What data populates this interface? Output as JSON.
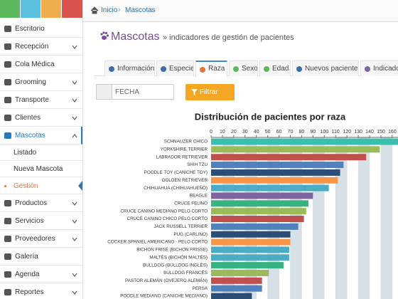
{
  "sidebar": {
    "menu": [
      "Escritorio",
      "Recepción",
      "Cola Médica",
      "Grooming",
      "Transporte",
      "Clientes",
      "Mascotas",
      "Productos",
      "Servicios",
      "Proveedores",
      "Galería",
      "Agenda",
      "Reportes"
    ],
    "submenu": [
      "Listado",
      "Nueva Mascota",
      "Gestión"
    ]
  },
  "breadcrumb": [
    "Inicio",
    "Mascotas"
  ],
  "header": {
    "title": "Mascotas",
    "subtitle": "» indicadores de gestión de pacientes"
  },
  "tabs": [
    "Información",
    "Especie",
    "Raza",
    "Sexo",
    "Edad",
    "Nuevos pacientes",
    "Indicador"
  ],
  "filter": {
    "placeholder": "FECHA",
    "button": "Filtrar"
  },
  "chart_data": {
    "type": "bar",
    "orientation": "horizontal",
    "title": "Distribución de pacientes por raza",
    "categories": [
      "SCHNAUZER CHICO",
      "YORKSHIRE TERRIER",
      "LABRADOR RETRIEVER",
      "SHIH TZU",
      "POODLE TOY (CANICHE TOY)",
      "GOLDEN RETRIEVER",
      "CHIHUAHUA (CHIHUAHUEÑO)",
      "BEAGLE",
      "CRUCE FELINO",
      "CRUCE CANINO MEDIANO PELO CORTO",
      "CRUCE CANINO CHICO PELO CORTO",
      "JACK RUSSELL TERRIER",
      "PUG (CARLINO)",
      "COCKER SPANIEL AMERICANO - PELO CORTO",
      "BICHÓN FRISÉ (BICHON FRISSE)",
      "MALTÉS (BICHÓN MALTÉS)",
      "BULLDOG (BULLDOG INGLÉS)",
      "BULLDOG FRANCÉS",
      "PASTOR ALEMÁN (OVEJERO ALEMÁN)",
      "PERSA",
      "POODLE MEDIANO (CANICHE MEDIANO)"
    ],
    "values": [
      168,
      149,
      137,
      117,
      114,
      112,
      104,
      90,
      86,
      84,
      82,
      77,
      70,
      70,
      69,
      69,
      64,
      51,
      45,
      45,
      36
    ],
    "colors": [
      "#3bbfad",
      "#9bbb59",
      "#c0504d",
      "#4f81bd",
      "#2c4d75",
      "#f79646",
      "#4bacc6",
      "#8064a2",
      "#36b37e",
      "#9bbb59",
      "#c0504d",
      "#4f81bd",
      "#2c4d75",
      "#f79646",
      "#4bacc6",
      "#4bacc6",
      "#36b37e",
      "#9bbb59",
      "#c0504d",
      "#4f81bd",
      "#2c4d75"
    ],
    "xlim": [
      0,
      170
    ],
    "xticks": [
      0,
      10,
      20,
      30,
      40,
      50,
      60,
      70,
      80,
      90,
      100,
      110,
      120,
      130,
      140,
      150,
      160
    ],
    "grid": true
  }
}
